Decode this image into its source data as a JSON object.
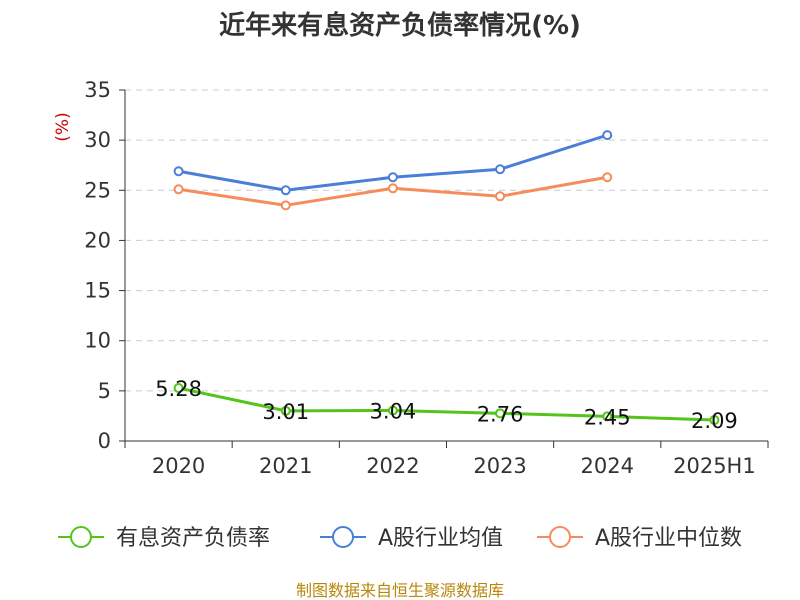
{
  "chart_data": {
    "type": "line",
    "title": "近年来有息资产负债率情况(%)",
    "ylabel": "(%)",
    "xlabel": "",
    "categories": [
      "2020",
      "2021",
      "2022",
      "2023",
      "2024",
      "2025H1"
    ],
    "ylim": [
      0,
      35
    ],
    "yticks": [
      0,
      5,
      10,
      15,
      20,
      25,
      30,
      35
    ],
    "grid": true,
    "legend_position": "bottom",
    "series": [
      {
        "name": "有息资产负债率",
        "color": "#52c41a",
        "values": [
          5.28,
          3.01,
          3.04,
          2.76,
          2.45,
          2.09
        ],
        "labels": [
          "5.28",
          "3.01",
          "3.04",
          "2.76",
          "2.45",
          "2.09"
        ]
      },
      {
        "name": "A股行业均值",
        "color": "#4a7fd8",
        "values": [
          26.9,
          25.0,
          26.3,
          27.1,
          30.5,
          null
        ]
      },
      {
        "name": "A股行业中位数",
        "color": "#f58c5a",
        "values": [
          25.1,
          23.5,
          25.2,
          24.4,
          26.3,
          null
        ]
      }
    ],
    "source": "制图数据来自恒生聚源数据库"
  }
}
